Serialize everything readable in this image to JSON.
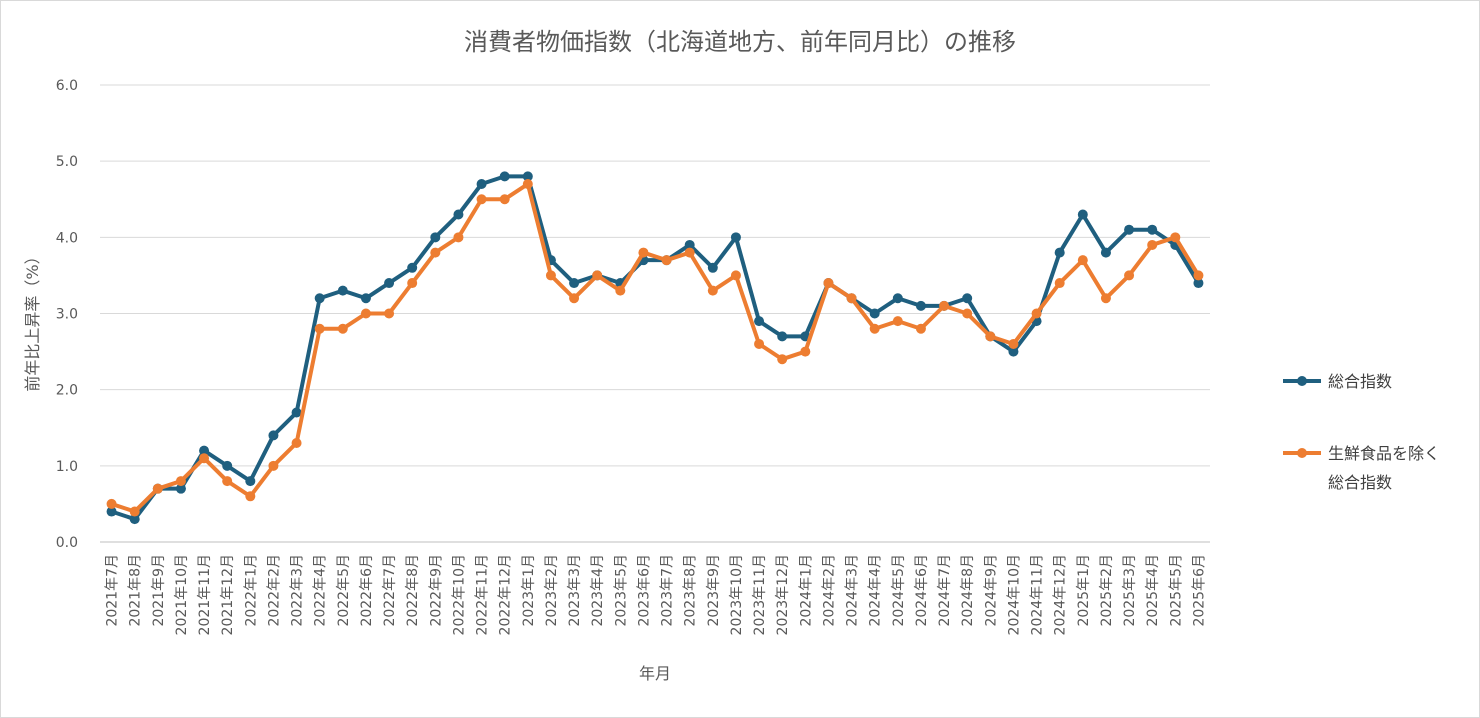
{
  "chart_data": {
    "type": "line",
    "title": "消費者物価指数（北海道地方、前年同月比）の推移",
    "xlabel": "年月",
    "ylabel": "前年比上昇率（%）",
    "ylim": [
      0,
      6
    ],
    "yticks": [
      "0.0",
      "1.0",
      "2.0",
      "3.0",
      "4.0",
      "5.0",
      "6.0"
    ],
    "grid": true,
    "legend_position": "right",
    "categories": [
      "2021年7月",
      "2021年8月",
      "2021年9月",
      "2021年10月",
      "2021年11月",
      "2021年12月",
      "2022年1月",
      "2022年2月",
      "2022年3月",
      "2022年4月",
      "2022年5月",
      "2022年6月",
      "2022年7月",
      "2022年8月",
      "2022年9月",
      "2022年10月",
      "2022年11月",
      "2022年12月",
      "2023年1月",
      "2023年2月",
      "2023年3月",
      "2023年4月",
      "2023年5月",
      "2023年6月",
      "2023年7月",
      "2023年8月",
      "2023年9月",
      "2023年10月",
      "2023年11月",
      "2023年12月",
      "2024年1月",
      "2024年2月",
      "2024年3月",
      "2024年4月",
      "2024年5月",
      "2024年6月",
      "2024年7月",
      "2024年8月",
      "2024年9月",
      "2024年10月",
      "2024年11月",
      "2024年12月",
      "2025年1月",
      "2025年2月",
      "2025年3月",
      "2025年4月",
      "2025年5月",
      "2025年6月"
    ],
    "series": [
      {
        "name": "総合指数",
        "color": "#1f5f7f",
        "values": [
          0.4,
          0.3,
          0.7,
          0.7,
          1.2,
          1.0,
          0.8,
          1.4,
          1.7,
          3.2,
          3.3,
          3.2,
          3.4,
          3.6,
          4.0,
          4.3,
          4.7,
          4.8,
          4.8,
          3.7,
          3.4,
          3.5,
          3.4,
          3.7,
          3.7,
          3.9,
          3.6,
          4.0,
          2.9,
          2.7,
          2.7,
          3.4,
          3.2,
          3.0,
          3.2,
          3.1,
          3.1,
          3.2,
          2.7,
          2.5,
          2.9,
          3.8,
          4.3,
          3.8,
          4.1,
          4.1,
          3.9,
          3.4
        ]
      },
      {
        "name": "生鮮食品を除く総合指数",
        "legend_lines": [
          "生鮮食品を除く",
          "総合指数"
        ],
        "color": "#ed7d31",
        "values": [
          0.5,
          0.4,
          0.7,
          0.8,
          1.1,
          0.8,
          0.6,
          1.0,
          1.3,
          2.8,
          2.8,
          3.0,
          3.0,
          3.4,
          3.8,
          4.0,
          4.5,
          4.5,
          4.7,
          3.5,
          3.2,
          3.5,
          3.3,
          3.8,
          3.7,
          3.8,
          3.3,
          3.5,
          2.6,
          2.4,
          2.5,
          3.4,
          3.2,
          2.8,
          2.9,
          2.8,
          3.1,
          3.0,
          2.7,
          2.6,
          3.0,
          3.4,
          3.7,
          3.2,
          3.5,
          3.9,
          4.0,
          3.5
        ]
      }
    ]
  }
}
